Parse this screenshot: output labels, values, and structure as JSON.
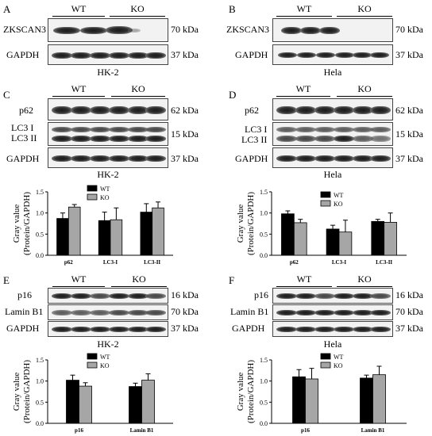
{
  "panels": {
    "A": {
      "letter": "A",
      "cell": "HK-2",
      "groups": [
        "WT",
        "KO"
      ],
      "rows": [
        {
          "label": "ZKSCAN3",
          "kda": "70 kDa"
        },
        {
          "label": "GAPDH",
          "kda": "37 kDa"
        }
      ]
    },
    "B": {
      "letter": "B",
      "cell": "Hela",
      "groups": [
        "WT",
        "KO"
      ],
      "rows": [
        {
          "label": "ZKSCAN3",
          "kda": "70 kDa"
        },
        {
          "label": "GAPDH",
          "kda": "37 kDa"
        }
      ]
    },
    "C": {
      "letter": "C",
      "cell": "HK-2",
      "groups": [
        "WT",
        "KO"
      ],
      "rows": [
        {
          "label": "p62",
          "kda": "62 kDa"
        },
        {
          "label": "LC3 I",
          "label2": "LC3 II",
          "kda": "15 kDa"
        },
        {
          "label": "GAPDH",
          "kda": "37 kDa"
        }
      ]
    },
    "D": {
      "letter": "D",
      "cell": "Hela",
      "groups": [
        "WT",
        "KO"
      ],
      "rows": [
        {
          "label": "p62",
          "kda": "62 kDa"
        },
        {
          "label": "LC3 I",
          "label2": "LC3 II",
          "kda": "15 kDa"
        },
        {
          "label": "GAPDH",
          "kda": "37 kDa"
        }
      ]
    },
    "E": {
      "letter": "E",
      "cell": "HK-2",
      "groups": [
        "WT",
        "KO"
      ],
      "rows": [
        {
          "label": "p16",
          "kda": "16 kDa"
        },
        {
          "label": "Lamin B1",
          "kda": "70 kDa"
        },
        {
          "label": "GAPDH",
          "kda": "37 kDa"
        }
      ]
    },
    "F": {
      "letter": "F",
      "cell": "Hela",
      "groups": [
        "WT",
        "KO"
      ],
      "rows": [
        {
          "label": "p16",
          "kda": "16 kDa"
        },
        {
          "label": "Lamin B1",
          "kda": "70 kDa"
        },
        {
          "label": "GAPDH",
          "kda": "37 kDa"
        }
      ]
    }
  },
  "colors": {
    "wt": "#000000",
    "ko": "#a6a6a6"
  },
  "chart_data": [
    {
      "id": "C",
      "type": "bar",
      "ylabel": "Gray value",
      "ylabel2": "(Protein/GAPDH)",
      "ylim": [
        0,
        1.5
      ],
      "yticks": [
        "0.0",
        "0.5",
        "1.0",
        "1.5"
      ],
      "legend": "top-center",
      "categories": [
        "p62",
        "LC3-I",
        "LC3-II"
      ],
      "series": [
        {
          "name": "WT",
          "values": [
            0.87,
            0.82,
            1.02
          ],
          "errors": [
            0.13,
            0.2,
            0.2
          ]
        },
        {
          "name": "KO",
          "values": [
            1.14,
            0.84,
            1.12
          ],
          "errors": [
            0.06,
            0.28,
            0.14
          ]
        }
      ]
    },
    {
      "id": "D",
      "type": "bar",
      "ylabel": "Gray value",
      "ylabel2": "(Protein/GAPDH)",
      "ylim": [
        0,
        1.5
      ],
      "yticks": [
        "0.0",
        "0.5",
        "1.0",
        "1.5"
      ],
      "legend": "top-right",
      "categories": [
        "p62",
        "LC3-I",
        "LC3-II"
      ],
      "series": [
        {
          "name": "WT",
          "values": [
            0.98,
            0.62,
            0.8
          ],
          "errors": [
            0.07,
            0.09,
            0.05
          ]
        },
        {
          "name": "KO",
          "values": [
            0.77,
            0.55,
            0.78
          ],
          "errors": [
            0.08,
            0.28,
            0.22
          ]
        }
      ]
    },
    {
      "id": "E",
      "type": "bar",
      "ylabel": "Gray value",
      "ylabel2": "(Protein/GAPDH)",
      "ylim": [
        0,
        1.5
      ],
      "yticks": [
        "0.0",
        "0.5",
        "1.0",
        "1.5"
      ],
      "legend": "top-center",
      "categories": [
        "p16",
        "Lamin B1"
      ],
      "series": [
        {
          "name": "WT",
          "values": [
            1.02,
            0.87
          ],
          "errors": [
            0.12,
            0.08
          ]
        },
        {
          "name": "KO",
          "values": [
            0.88,
            1.02
          ],
          "errors": [
            0.08,
            0.15
          ]
        }
      ]
    },
    {
      "id": "F",
      "type": "bar",
      "ylabel": "Gray value",
      "ylabel2": "(Protein/GAPDH)",
      "ylim": [
        0,
        1.5
      ],
      "yticks": [
        "0.0",
        "0.5",
        "1.0",
        "1.5"
      ],
      "legend": "top-center",
      "categories": [
        "p16",
        "Lamin B1"
      ],
      "series": [
        {
          "name": "WT",
          "values": [
            1.1,
            1.07
          ],
          "errors": [
            0.17,
            0.07
          ]
        },
        {
          "name": "KO",
          "values": [
            1.05,
            1.15
          ],
          "errors": [
            0.25,
            0.2
          ]
        }
      ]
    }
  ]
}
